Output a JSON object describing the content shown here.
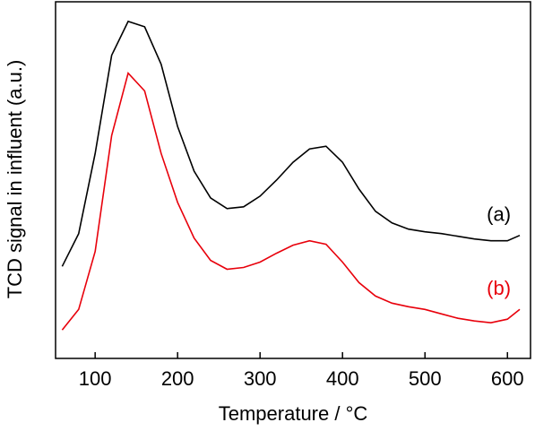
{
  "chart_data": {
    "type": "line",
    "x_label": "Temperature / °C",
    "y_label": "TCD signal in influent (a.u.)",
    "x": [
      60,
      80,
      100,
      120,
      140,
      160,
      180,
      200,
      220,
      240,
      260,
      280,
      300,
      320,
      340,
      360,
      380,
      400,
      420,
      440,
      460,
      480,
      500,
      520,
      540,
      560,
      580,
      600,
      615
    ],
    "series": [
      {
        "name": "(a)",
        "color": "#000000",
        "values": [
          25.8,
          35,
          57.5,
          85,
          94.5,
          93,
          82.5,
          65,
          52.5,
          45,
          42,
          42.5,
          45.5,
          50,
          55,
          58.75,
          59.5,
          55,
          47.5,
          41.25,
          38,
          36.25,
          35.5,
          35,
          34.25,
          33.5,
          33,
          33,
          34.5
        ]
      },
      {
        "name": "(b)",
        "color": "#e8000b",
        "values": [
          8,
          13.75,
          30,
          62.5,
          80,
          75,
          57.5,
          43.75,
          33.75,
          27.5,
          25,
          25.5,
          27,
          29.5,
          31.75,
          33,
          32,
          27,
          21.25,
          17.5,
          15.5,
          14.5,
          13.75,
          12.5,
          11.25,
          10.5,
          10,
          11,
          13.75
        ]
      }
    ],
    "xlim": [
      52,
      628
    ],
    "xticks": [
      100,
      200,
      300,
      400,
      500,
      600
    ],
    "ylim": [
      0,
      100
    ]
  }
}
